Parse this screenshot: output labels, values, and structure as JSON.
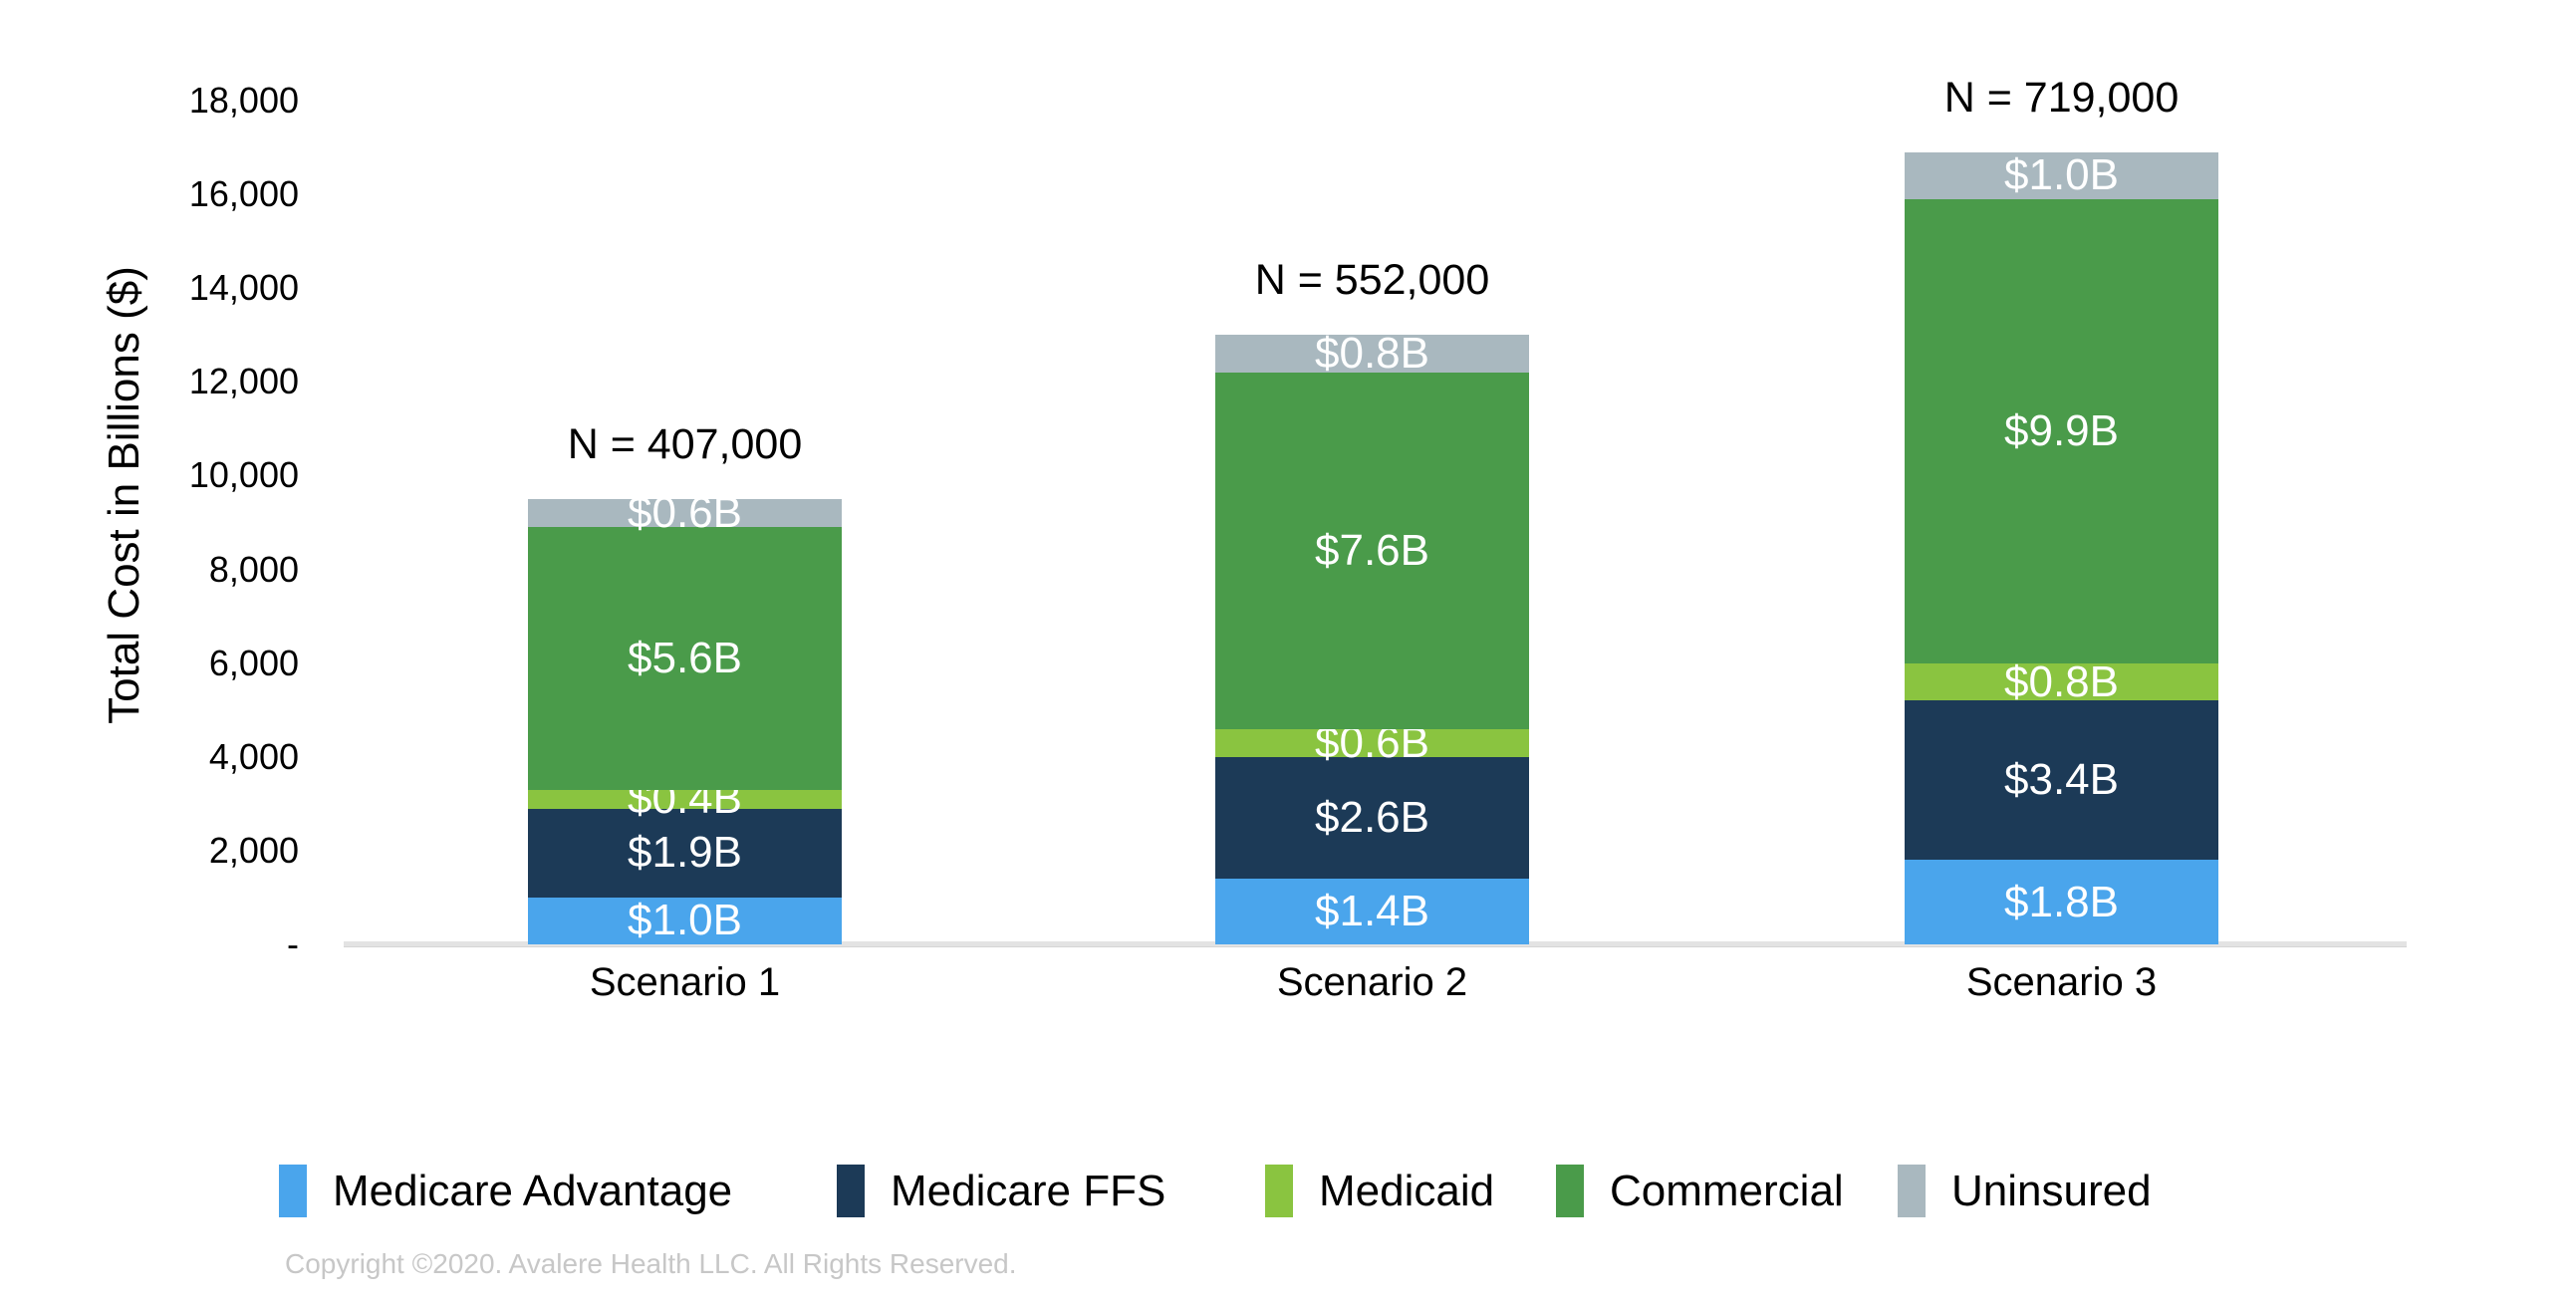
{
  "copyright": "Copyright ©2020. Avalere Health LLC. All Rights Reserved.",
  "chart_data": {
    "type": "bar",
    "stacked": true,
    "title": "",
    "xlabel": "",
    "ylabel": "Total Cost in Billions ($)",
    "ylim": [
      0,
      18000
    ],
    "grid": false,
    "legend_position": "bottom",
    "categories": [
      "Scenario 1",
      "Scenario 2",
      "Scenario 3"
    ],
    "bar_annotations": [
      "N = 407,000",
      "N = 552,000",
      "N = 719,000"
    ],
    "y_ticks": [
      {
        "label": "18,000",
        "value": 18000
      },
      {
        "label": "16,000",
        "value": 16000
      },
      {
        "label": "14,000",
        "value": 14000
      },
      {
        "label": "12,000",
        "value": 12000
      },
      {
        "label": "10,000",
        "value": 10000
      },
      {
        "label": "8,000",
        "value": 8000
      },
      {
        "label": "6,000",
        "value": 6000
      },
      {
        "label": "4,000",
        "value": 4000
      },
      {
        "label": "2,000",
        "value": 2000
      },
      {
        "label": "-",
        "value": 0
      }
    ],
    "series": [
      {
        "name": "Medicare Advantage",
        "color": "#4AA5EC",
        "values": [
          1.0,
          1.4,
          1.8
        ],
        "labels": [
          "$1.0B",
          "$1.4B",
          "$1.8B"
        ]
      },
      {
        "name": "Medicare FFS",
        "color": "#1C3A57",
        "values": [
          1.9,
          2.6,
          3.4
        ],
        "labels": [
          "$1.9B",
          "$2.6B",
          "$3.4B"
        ]
      },
      {
        "name": "Medicaid",
        "color": "#8AC440",
        "values": [
          0.4,
          0.6,
          0.8
        ],
        "labels": [
          "$0.4B",
          "$0.6B",
          "$0.8B"
        ]
      },
      {
        "name": "Commercial",
        "color": "#4A9B4A",
        "values": [
          5.6,
          7.6,
          9.9
        ],
        "labels": [
          "$5.6B",
          "$7.6B",
          "$9.9B"
        ]
      },
      {
        "name": "Uninsured",
        "color": "#A9B8BF",
        "values": [
          0.6,
          0.8,
          1.0
        ],
        "labels": [
          "$0.6B",
          "$0.8B",
          "$1.0B"
        ]
      }
    ]
  }
}
